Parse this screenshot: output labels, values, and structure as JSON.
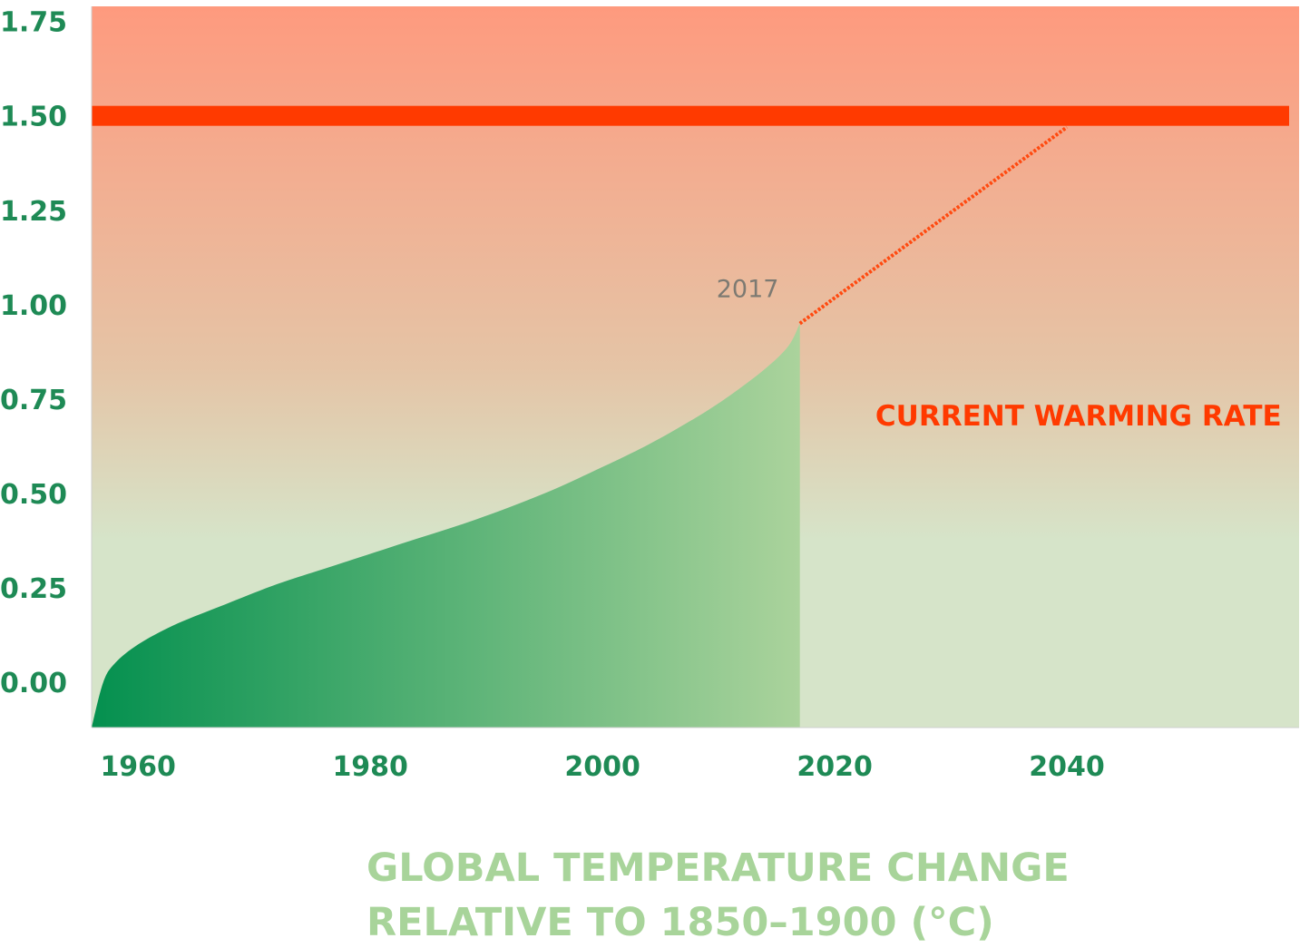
{
  "colors": {
    "background_top": "#fe9a7e",
    "background_mid": "#e5c4a6",
    "background_bottom": "#d6e4c9",
    "threshold_line": "#ff3a00",
    "projection_line": "#ff4a10",
    "area_fill_start": "#04904f",
    "area_fill_end": "#abd39c",
    "tick_label": "#1e8a55",
    "annotation_year": "#7d7a72",
    "annotation_rate": "#ff3a00",
    "title": "#a8d49a"
  },
  "chart_data": {
    "type": "area",
    "title_lines": [
      "GLOBAL TEMPERATURE CHANGE",
      "RELATIVE TO 1850–1900 (°C)"
    ],
    "xlabel": "",
    "ylabel": "",
    "xlim": [
      1956,
      2060
    ],
    "ylim": [
      -0.12,
      1.79
    ],
    "x_ticks": [
      {
        "value": 1960,
        "label": "1960"
      },
      {
        "value": 1980,
        "label": "1980"
      },
      {
        "value": 2000,
        "label": "2000"
      },
      {
        "value": 2020,
        "label": "2020"
      },
      {
        "value": 2040,
        "label": "2040"
      }
    ],
    "y_ticks": [
      {
        "value": 0.0,
        "label": "0.00"
      },
      {
        "value": 0.25,
        "label": "0.25"
      },
      {
        "value": 0.5,
        "label": "0.50"
      },
      {
        "value": 0.75,
        "label": "0.75"
      },
      {
        "value": 1.0,
        "label": "1.00"
      },
      {
        "value": 1.25,
        "label": "1.25"
      },
      {
        "value": 1.5,
        "label": "1.50"
      },
      {
        "value": 1.75,
        "label": "1.75"
      }
    ],
    "series": [
      {
        "x": [
          1956,
          1957,
          1958,
          1960,
          1963,
          1967,
          1972,
          1977,
          1983,
          1989,
          1995,
          2000,
          2004,
          2008,
          2011,
          2014,
          2016,
          2017
        ],
        "y": [
          -0.12,
          0.0,
          0.05,
          0.1,
          0.15,
          0.2,
          0.26,
          0.31,
          0.37,
          0.43,
          0.5,
          0.57,
          0.63,
          0.7,
          0.76,
          0.83,
          0.89,
          0.95
        ]
      }
    ],
    "threshold": {
      "y": 1.5
    },
    "projection": {
      "x": [
        2017,
        2040
      ],
      "y": [
        0.95,
        1.47
      ]
    },
    "annotations": [
      {
        "text": "2017",
        "x": 2012.5,
        "y": 1.02
      },
      {
        "text": "CURRENT WARMING RATE",
        "x": 2041,
        "y": 0.68
      }
    ],
    "grid": false,
    "legend": "none"
  }
}
